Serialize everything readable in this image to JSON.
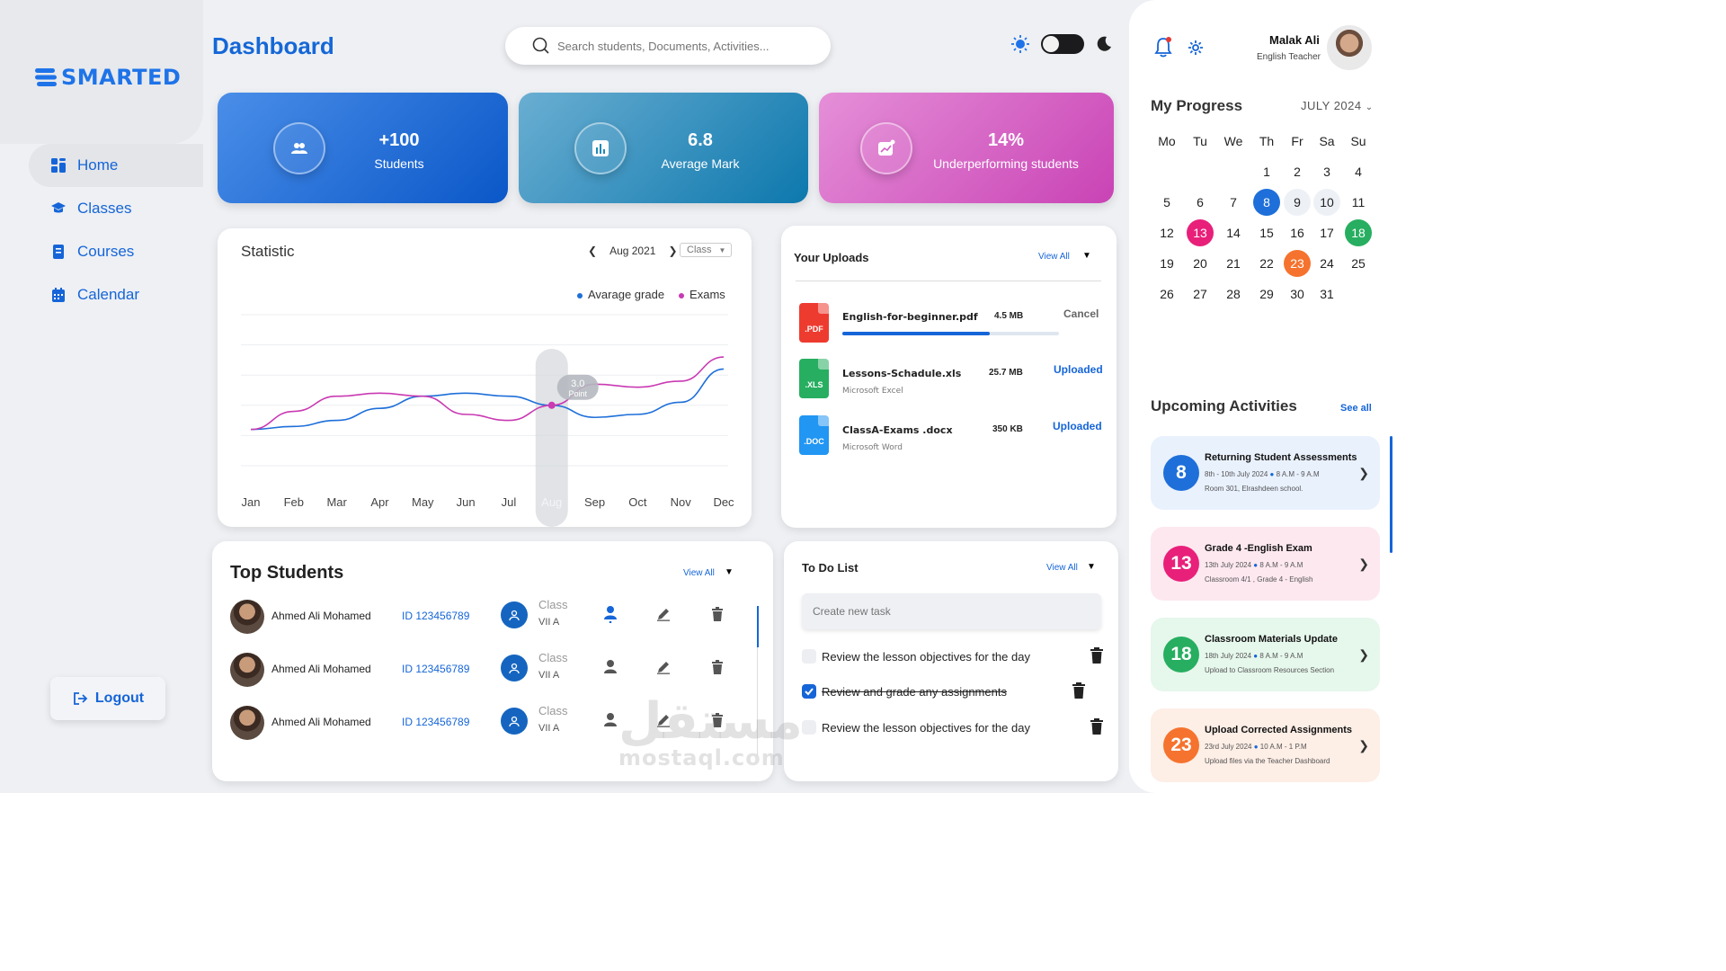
{
  "brand": {
    "name": "SMARTED"
  },
  "nav": [
    {
      "label": "Home",
      "icon": "grid-icon",
      "active": true
    },
    {
      "label": "Classes",
      "icon": "graduation-cap-icon"
    },
    {
      "label": "Courses",
      "icon": "book-icon"
    },
    {
      "label": "Calendar",
      "icon": "calendar-icon"
    }
  ],
  "logout_label": "Logout",
  "header": {
    "title": "Dashboard",
    "search_placeholder": "Search students, Documents, Activities..."
  },
  "stats": [
    {
      "value": "+100",
      "label": "Students"
    },
    {
      "value": "6.8",
      "label": "Average Mark"
    },
    {
      "value": "14%",
      "label": "Underperforming students"
    }
  ],
  "statistic": {
    "title": "Statistic",
    "month": "Aug 2021",
    "filter": "Class",
    "highlight_value": "3.0",
    "highlight_unit": "Point"
  },
  "chart_data": {
    "type": "line",
    "categories": [
      "Jan",
      "Feb",
      "Mar",
      "Apr",
      "May",
      "Jun",
      "Jul",
      "Aug",
      "Sep",
      "Oct",
      "Nov",
      "Dec"
    ],
    "series": [
      {
        "name": "Avarage grade",
        "color": "#1e6fd9",
        "values": [
          2.2,
          2.3,
          2.5,
          2.9,
          3.3,
          3.4,
          3.3,
          3.0,
          2.6,
          2.7,
          3.1,
          4.2
        ]
      },
      {
        "name": "Exams",
        "color": "#c93ab3",
        "values": [
          2.2,
          2.8,
          3.3,
          3.4,
          3.3,
          2.7,
          2.5,
          3.0,
          3.7,
          3.6,
          3.8,
          4.6
        ]
      }
    ],
    "highlight_category": "Aug",
    "ylim": [
      1,
      6
    ],
    "grid": true,
    "legend": "top-right"
  },
  "uploads": {
    "title": "Your Uploads",
    "view_all": "View All",
    "files": [
      {
        "ext": ".PDF",
        "name": "English-for-beginner.pdf",
        "type": "",
        "size": "4.5 MB",
        "status": "Cancel",
        "color": "#ee3b30",
        "progress": 0.68
      },
      {
        "ext": ".XLS",
        "name": "Lessons-Schadule.xls",
        "type": "Microsoft Excel",
        "size": "25.7 MB",
        "status": "Uploaded",
        "color": "#27ae60"
      },
      {
        "ext": ".DOC",
        "name": "ClassA-Exams .docx",
        "type": "Microsoft Word",
        "size": "350 KB",
        "status": "Uploaded",
        "color": "#2196f3"
      }
    ]
  },
  "top_students": {
    "title": "Top Students",
    "view_all": "View All",
    "class_label": "Class",
    "rows": [
      {
        "name": "Ahmed Ali Mohamed",
        "id": "ID 123456789",
        "class": "VII A"
      },
      {
        "name": "Ahmed Ali Mohamed",
        "id": "ID 123456789",
        "class": "VII A"
      },
      {
        "name": "Ahmed Ali Mohamed",
        "id": "ID 123456789",
        "class": "VII A"
      }
    ]
  },
  "todo": {
    "title": "To Do List",
    "view_all": "View All",
    "placeholder": "Create new task",
    "tasks": [
      {
        "text": "Review the lesson objectives for the day",
        "done": false
      },
      {
        "text": "Review and grade any assignments",
        "done": true
      },
      {
        "text": "Review the lesson objectives for the day",
        "done": false
      }
    ]
  },
  "profile": {
    "name": "Malak Ali",
    "role": "English Teacher"
  },
  "progress": {
    "title": "My Progress",
    "month": "JULY 2024",
    "weekdays": [
      "Mo",
      "Tu",
      "We",
      "Th",
      "Fr",
      "Sa",
      "Su"
    ],
    "weeks": [
      [
        "",
        "",
        "",
        "1",
        "2",
        "3",
        "4"
      ],
      [
        "5",
        "6",
        "7",
        "8",
        "9",
        "10",
        "11"
      ],
      [
        "12",
        "13",
        "14",
        "15",
        "16",
        "17",
        "18"
      ],
      [
        "19",
        "20",
        "21",
        "22",
        "23",
        "24",
        "25"
      ],
      [
        "26",
        "27",
        "28",
        "29",
        "30",
        "31",
        ""
      ]
    ],
    "marked": {
      "8": "#1e6fd9",
      "13": "#e8207a",
      "18": "#27ae60",
      "23": "#f5732e"
    },
    "soft": [
      "9",
      "10"
    ]
  },
  "activities": {
    "title": "Upcoming Activities",
    "see_all": "See all",
    "items": [
      {
        "day": "8",
        "title": "Returning Student Assessments",
        "date": "8th - 10th July 2024",
        "time": "8 A.M - 9 A.M",
        "place": "Room 301, Elrashdeen school.",
        "color": "#1e6fd9",
        "bg": "#e9f1fd"
      },
      {
        "day": "13",
        "title": "Grade 4 -English Exam",
        "date": "13th July 2024",
        "time": "8 A.M - 9 A.M",
        "place": "Classroom 4/1 , Grade 4 - English",
        "color": "#e8207a",
        "bg": "#fde8f0"
      },
      {
        "day": "18",
        "title": "Classroom Materials Update",
        "date": "18th July 2024",
        "time": "8 A.M - 9 A.M",
        "place": "Upload to Classroom Resources Section",
        "color": "#27ae60",
        "bg": "#e6f7ec"
      },
      {
        "day": "23",
        "title": "Upload Corrected Assignments",
        "date": "23rd July 2024",
        "time": "10 A.M - 1 P.M",
        "place": "Upload files via the Teacher Dashboard",
        "color": "#f5732e",
        "bg": "#fdeee6"
      }
    ]
  },
  "watermark": {
    "arabic": "مستقل",
    "latin": "mostaql.com"
  }
}
